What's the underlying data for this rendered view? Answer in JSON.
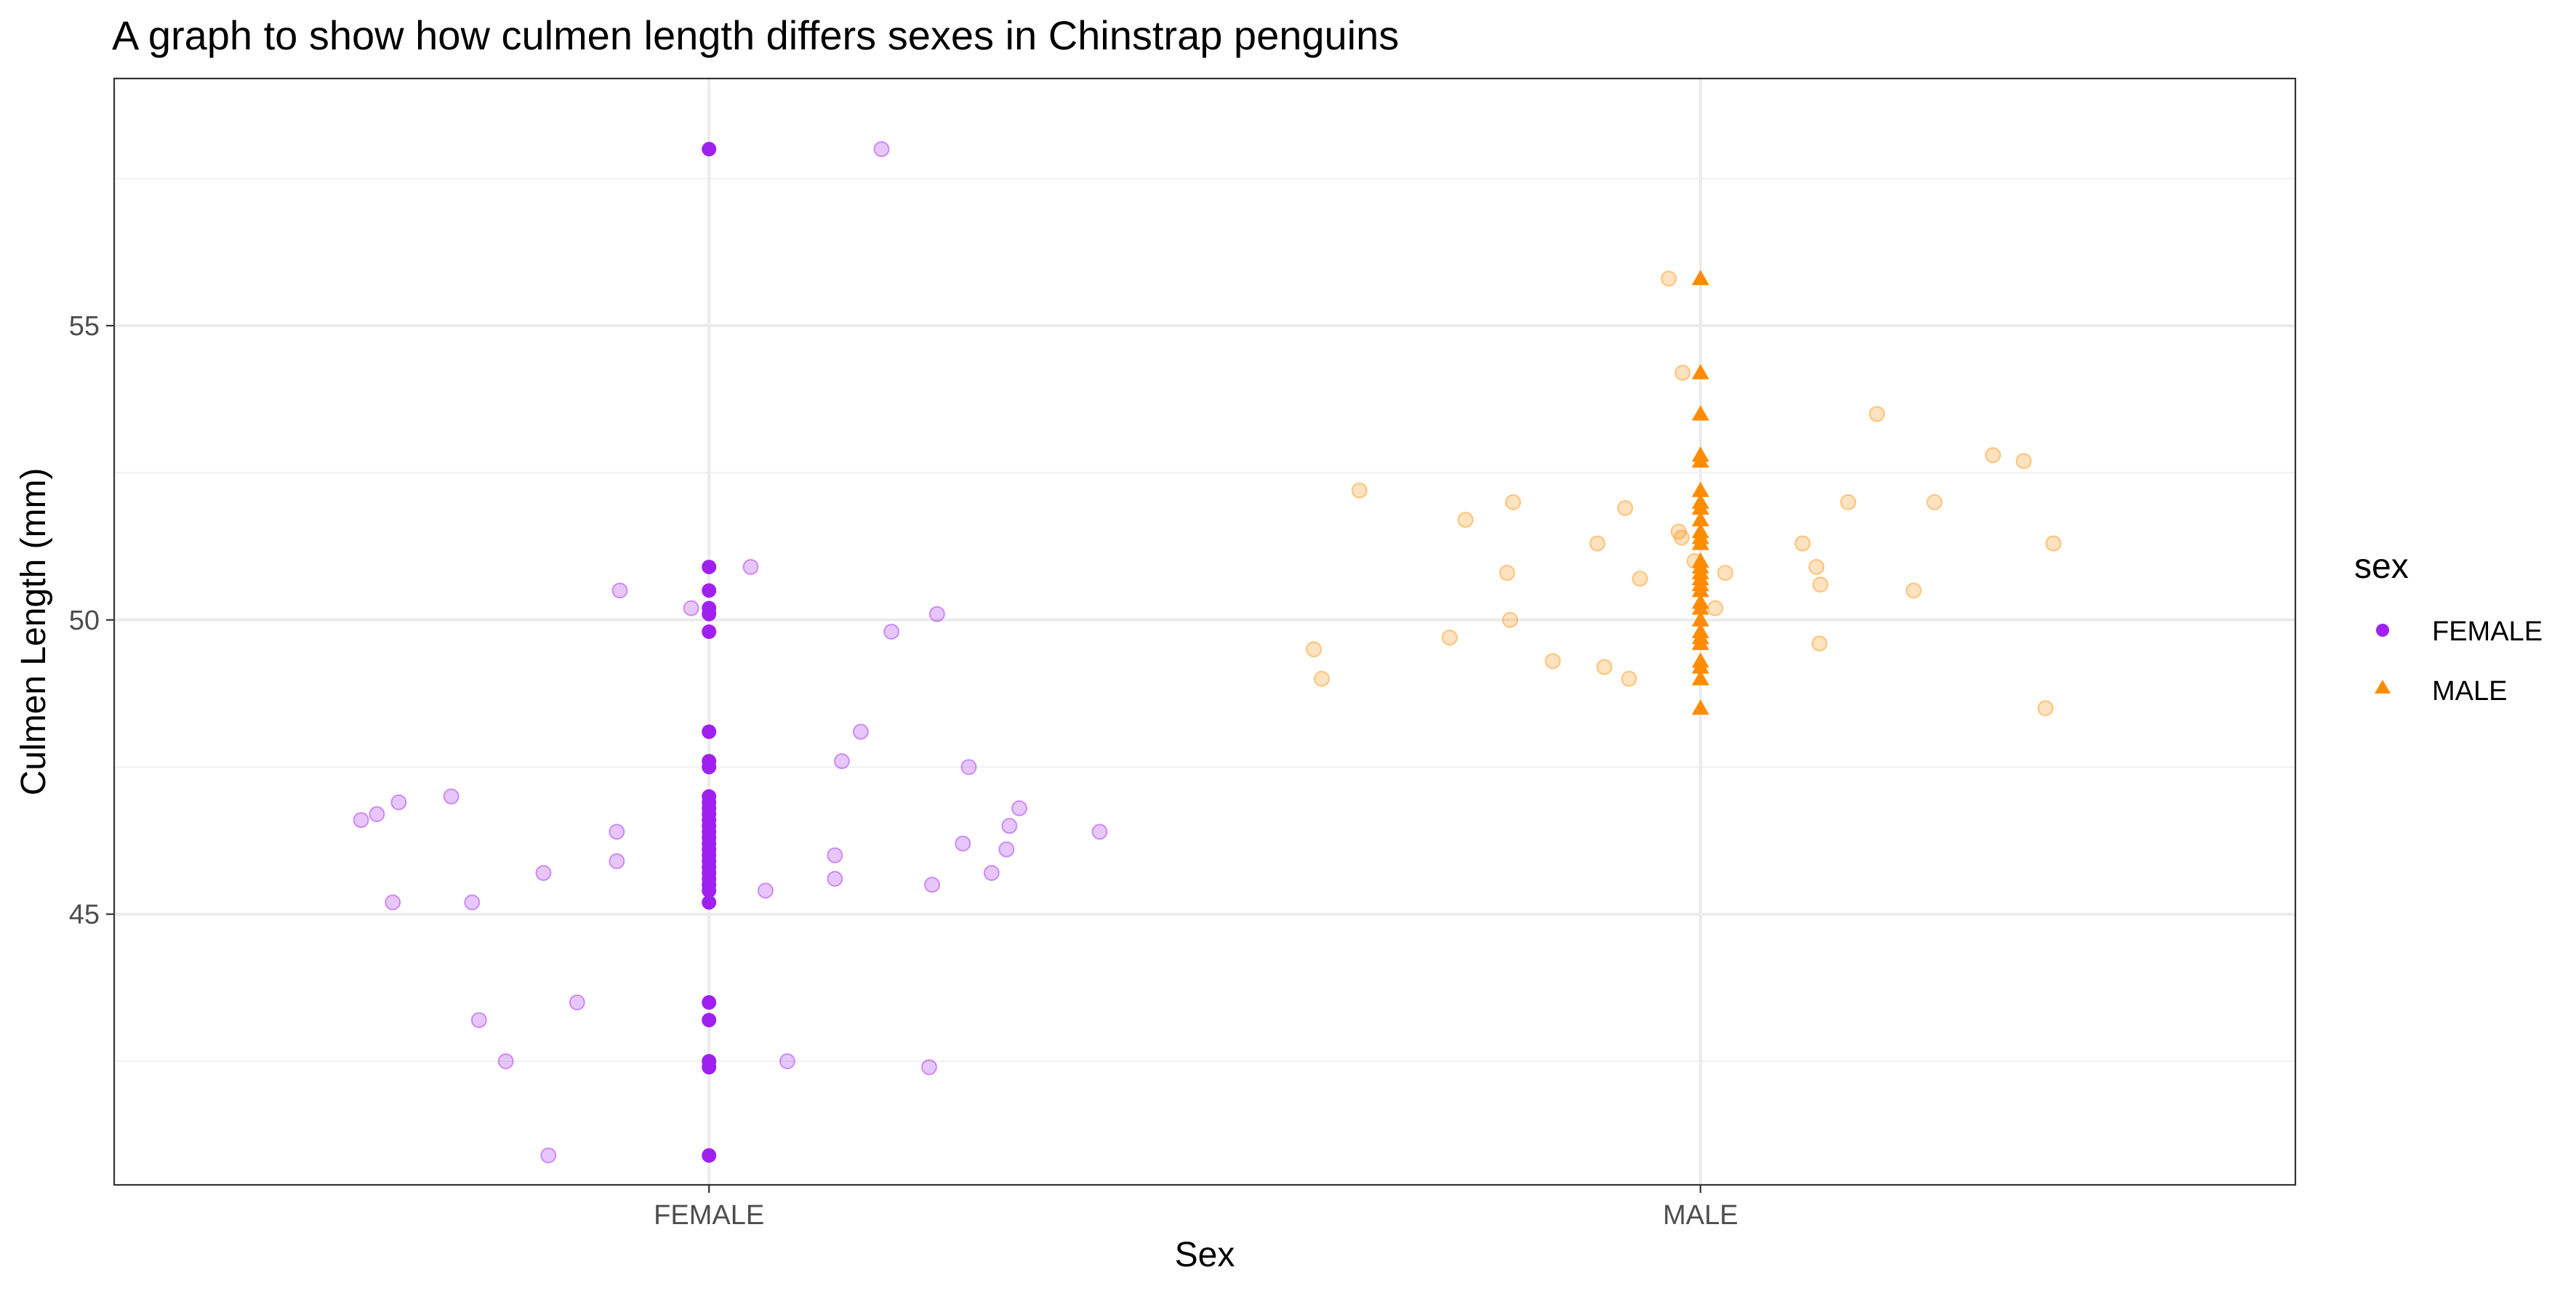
{
  "chart_data": {
    "type": "scatter",
    "title": "A graph to show how culmen length differs sexes in Chinstrap penguins",
    "xlabel": "Sex",
    "ylabel": "Culmen Length (mm)",
    "categories": [
      "FEMALE",
      "MALE"
    ],
    "ylim": [
      40.4,
      59.2
    ],
    "yticks": [
      45,
      50,
      55
    ],
    "grid": true,
    "legend": {
      "title": "sex",
      "position": "right",
      "entries": [
        {
          "label": "FEMALE",
          "color": "#A020F0",
          "shape": "circle"
        },
        {
          "label": "MALE",
          "color": "#FF8C00",
          "shape": "triangle"
        }
      ]
    },
    "colors": {
      "FEMALE": "#A020F0",
      "MALE": "#FF8C00"
    },
    "series": [
      {
        "name": "FEMALE",
        "category": "FEMALE",
        "values": [
          58.0,
          50.9,
          50.5,
          50.2,
          50.1,
          49.8,
          48.1,
          47.6,
          47.5,
          47.0,
          46.9,
          46.8,
          46.7,
          46.6,
          46.5,
          46.4,
          46.3,
          46.2,
          46.1,
          46.0,
          45.9,
          45.8,
          45.7,
          45.6,
          45.5,
          45.4,
          45.2,
          43.5,
          43.2,
          42.5,
          42.4,
          40.9
        ]
      },
      {
        "name": "MALE",
        "category": "MALE",
        "values": [
          55.8,
          54.2,
          53.5,
          52.8,
          52.7,
          52.2,
          52.0,
          51.9,
          51.7,
          51.5,
          51.4,
          51.3,
          51.0,
          50.9,
          50.8,
          50.7,
          50.6,
          50.5,
          50.3,
          50.2,
          50.0,
          49.8,
          49.7,
          49.6,
          49.3,
          49.2,
          49.0,
          48.5
        ]
      }
    ],
    "jittered": [
      {
        "category": "FEMALE",
        "points": [
          {
            "x": 1.174,
            "y": 58.0
          },
          {
            "x": 0.91,
            "y": 50.5
          },
          {
            "x": 0.982,
            "y": 50.2
          },
          {
            "x": 1.042,
            "y": 50.9
          },
          {
            "x": 1.23,
            "y": 50.1
          },
          {
            "x": 1.184,
            "y": 49.8
          },
          {
            "x": 1.153,
            "y": 48.1
          },
          {
            "x": 1.134,
            "y": 47.6
          },
          {
            "x": 1.262,
            "y": 47.5
          },
          {
            "x": 0.649,
            "y": 46.6
          },
          {
            "x": 0.687,
            "y": 46.9
          },
          {
            "x": 0.665,
            "y": 46.7
          },
          {
            "x": 0.74,
            "y": 47.0
          },
          {
            "x": 0.907,
            "y": 46.4
          },
          {
            "x": 0.907,
            "y": 45.9
          },
          {
            "x": 0.833,
            "y": 45.7
          },
          {
            "x": 1.313,
            "y": 46.8
          },
          {
            "x": 1.303,
            "y": 46.5
          },
          {
            "x": 1.394,
            "y": 46.4
          },
          {
            "x": 1.256,
            "y": 46.2
          },
          {
            "x": 1.3,
            "y": 46.1
          },
          {
            "x": 1.127,
            "y": 46.0
          },
          {
            "x": 1.285,
            "y": 45.7
          },
          {
            "x": 1.127,
            "y": 45.6
          },
          {
            "x": 1.225,
            "y": 45.5
          },
          {
            "x": 1.057,
            "y": 45.4
          },
          {
            "x": 0.681,
            "y": 45.2
          },
          {
            "x": 0.761,
            "y": 45.2
          },
          {
            "x": 0.867,
            "y": 43.5
          },
          {
            "x": 0.768,
            "y": 43.2
          },
          {
            "x": 0.795,
            "y": 42.5
          },
          {
            "x": 1.079,
            "y": 42.5
          },
          {
            "x": 1.222,
            "y": 42.4
          },
          {
            "x": 0.838,
            "y": 40.9
          }
        ]
      },
      {
        "category": "MALE",
        "points": [
          {
            "x": 1.968,
            "y": 55.8
          },
          {
            "x": 1.982,
            "y": 54.2
          },
          {
            "x": 2.178,
            "y": 53.5
          },
          {
            "x": 2.295,
            "y": 52.8
          },
          {
            "x": 2.326,
            "y": 52.7
          },
          {
            "x": 1.656,
            "y": 52.2
          },
          {
            "x": 1.811,
            "y": 52.0
          },
          {
            "x": 2.149,
            "y": 52.0
          },
          {
            "x": 2.236,
            "y": 52.0
          },
          {
            "x": 1.924,
            "y": 51.9
          },
          {
            "x": 1.763,
            "y": 51.7
          },
          {
            "x": 1.981,
            "y": 51.4
          },
          {
            "x": 1.978,
            "y": 51.5
          },
          {
            "x": 1.896,
            "y": 51.3
          },
          {
            "x": 2.103,
            "y": 51.3
          },
          {
            "x": 2.356,
            "y": 51.3
          },
          {
            "x": 1.994,
            "y": 51.0
          },
          {
            "x": 2.117,
            "y": 50.9
          },
          {
            "x": 1.805,
            "y": 50.8
          },
          {
            "x": 2.025,
            "y": 50.8
          },
          {
            "x": 1.939,
            "y": 50.7
          },
          {
            "x": 2.121,
            "y": 50.6
          },
          {
            "x": 2.215,
            "y": 50.5
          },
          {
            "x": 2.015,
            "y": 50.2
          },
          {
            "x": 1.808,
            "y": 50.0
          },
          {
            "x": 1.747,
            "y": 49.7
          },
          {
            "x": 2.12,
            "y": 49.6
          },
          {
            "x": 1.61,
            "y": 49.5
          },
          {
            "x": 1.851,
            "y": 49.3
          },
          {
            "x": 1.903,
            "y": 49.2
          },
          {
            "x": 1.618,
            "y": 49.0
          },
          {
            "x": 1.928,
            "y": 49.0
          },
          {
            "x": 2.348,
            "y": 48.5
          }
        ]
      }
    ]
  }
}
